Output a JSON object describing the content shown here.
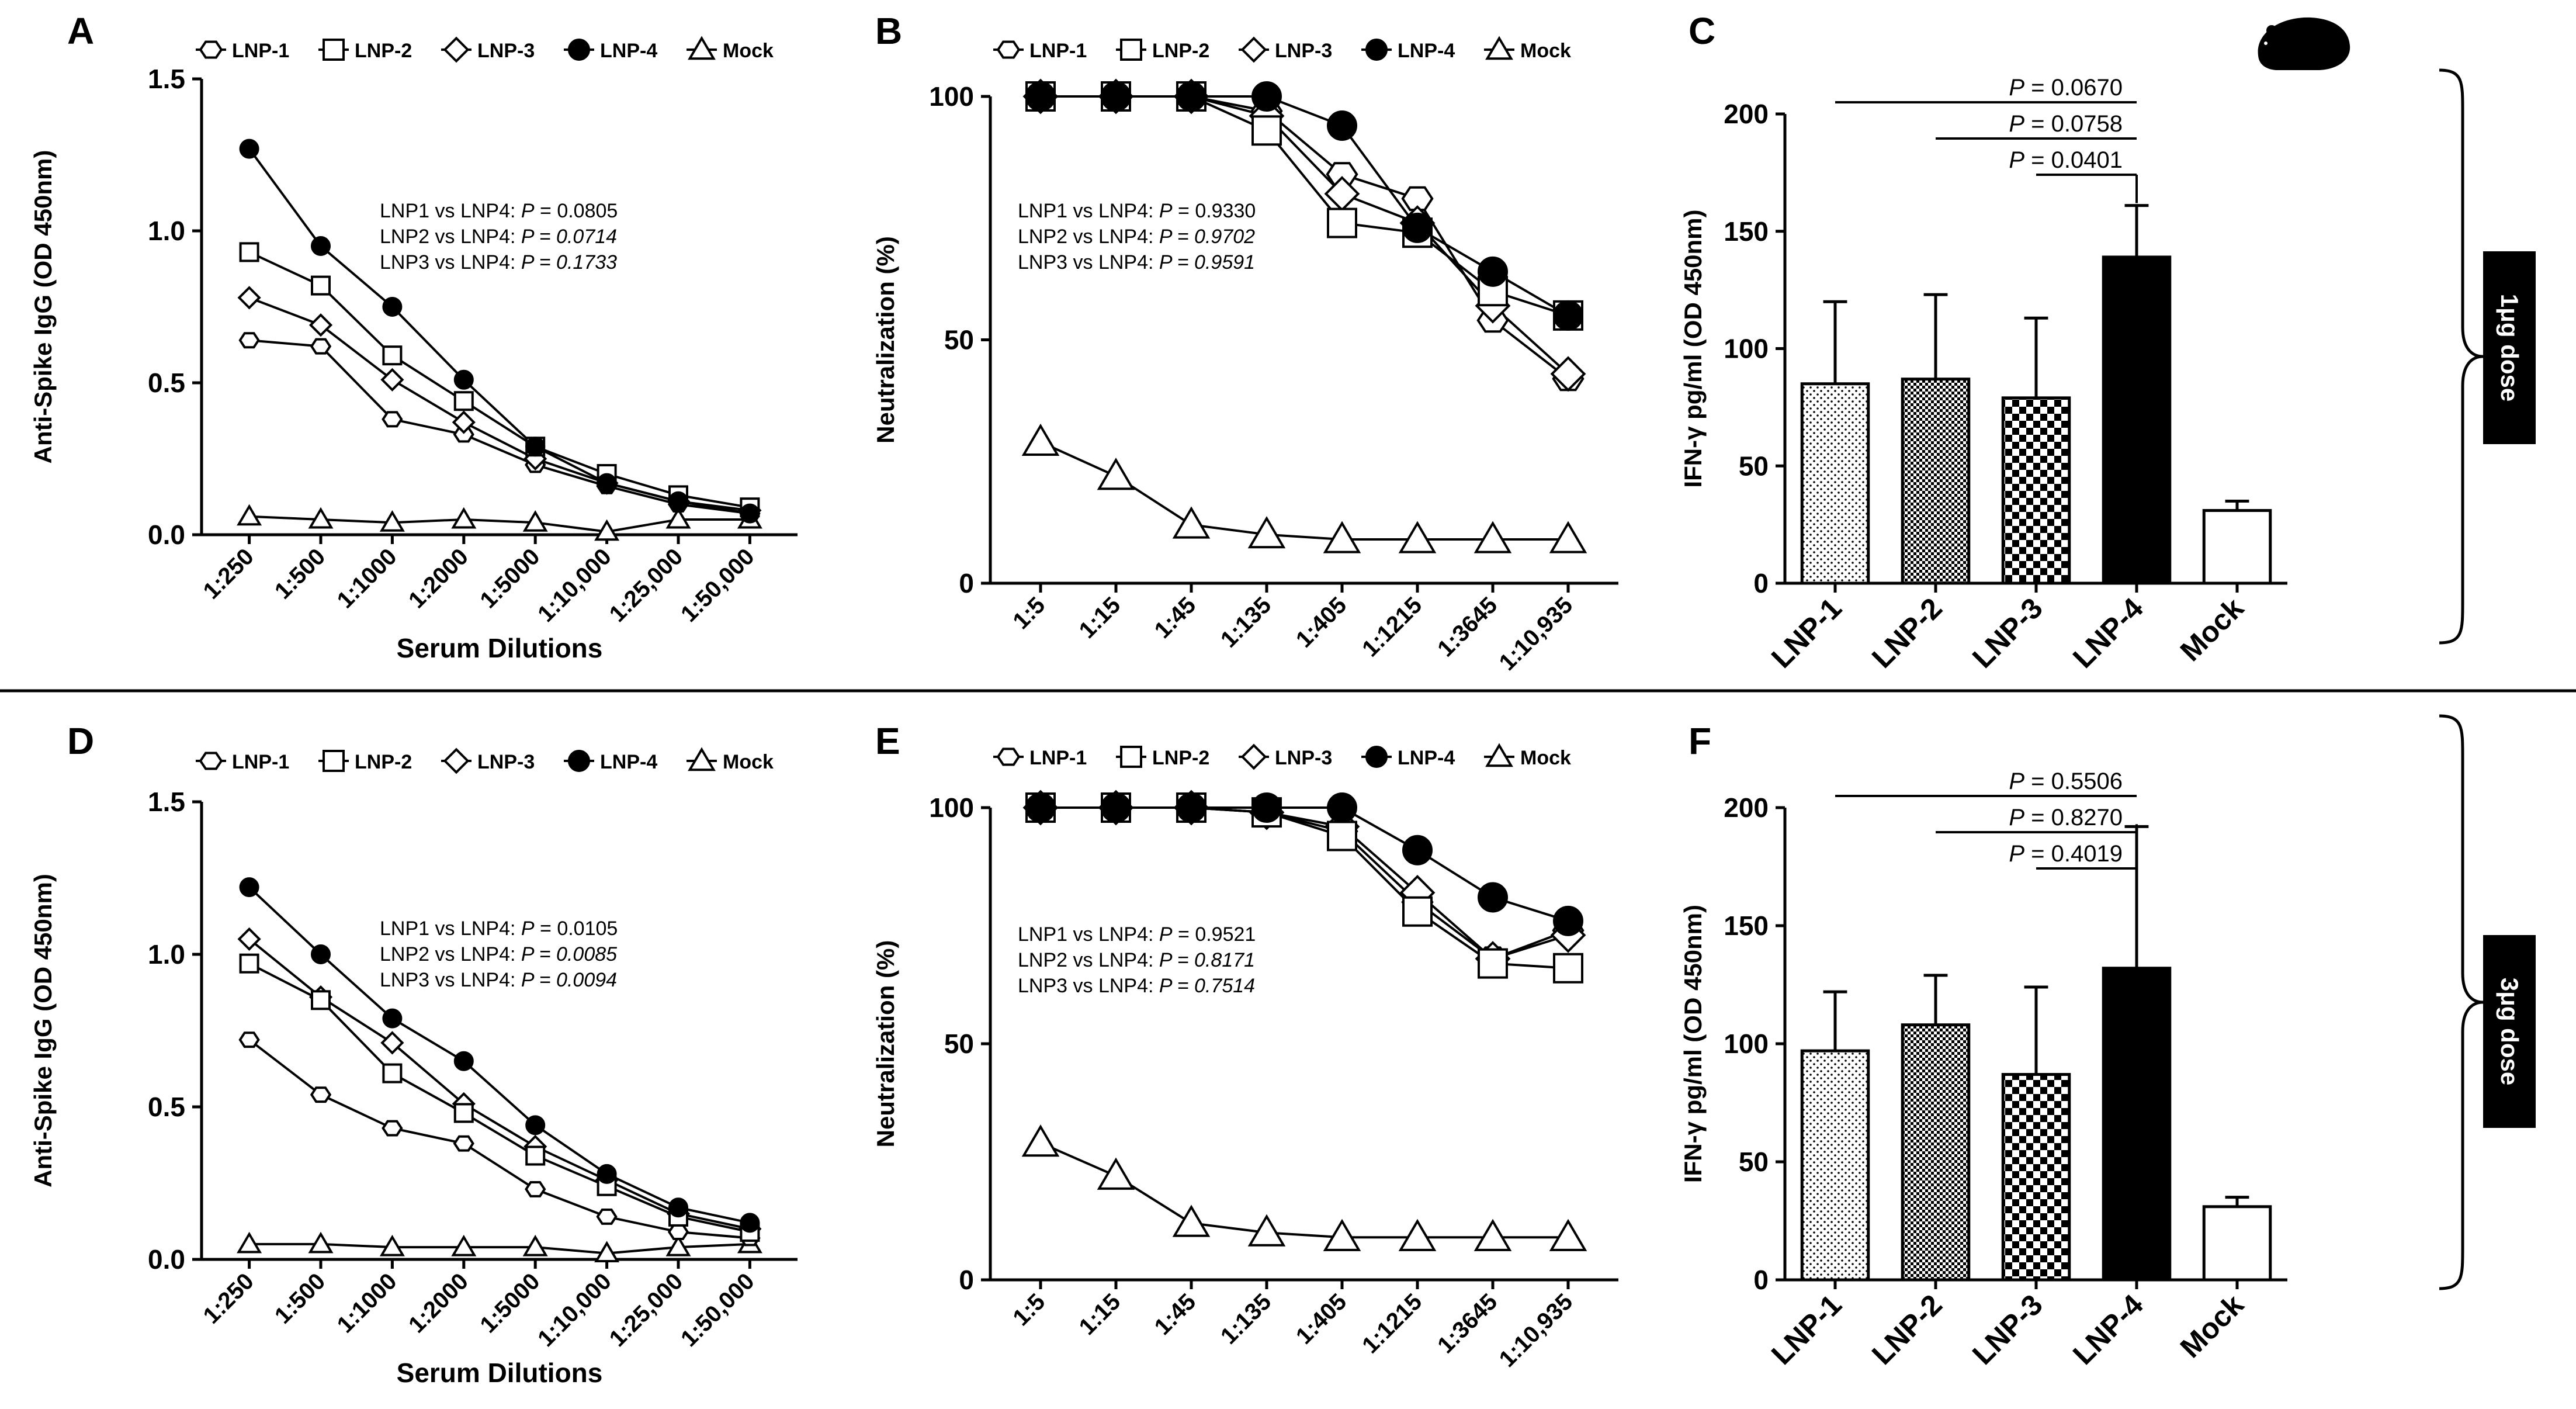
{
  "icons": {
    "animal": "hamster-icon"
  },
  "colors": {
    "ink": "#000000",
    "paper": "#ffffff",
    "dose_tab": "#000000"
  },
  "doses": [
    {
      "label": "1μg dose"
    },
    {
      "label": "3μg dose"
    }
  ],
  "chart_data": [
    {
      "panel": "A",
      "type": "line",
      "ylabel": "Anti-Spike IgG (OD 450nm)",
      "xlabel": "Serum Dilutions",
      "ylim": [
        0,
        1.5
      ],
      "yticks": [
        "0.0",
        "0.5",
        "1.0",
        "1.5"
      ],
      "categories": [
        "1:250",
        "1:500",
        "1:1000",
        "1:2000",
        "1:5000",
        "1:10,000",
        "1:25,000",
        "1:50,000"
      ],
      "legend": [
        "LNP-1",
        "LNP-2",
        "LNP-3",
        "LNP-4",
        "Mock"
      ],
      "series": [
        {
          "name": "LNP-1",
          "marker": "hexagon",
          "values": [
            0.64,
            0.62,
            0.38,
            0.33,
            0.23,
            0.16,
            0.1,
            0.07
          ]
        },
        {
          "name": "LNP-2",
          "marker": "square",
          "values": [
            0.93,
            0.82,
            0.59,
            0.44,
            0.29,
            0.2,
            0.13,
            0.09
          ]
        },
        {
          "name": "LNP-3",
          "marker": "diamond",
          "values": [
            0.78,
            0.69,
            0.51,
            0.37,
            0.25,
            0.17,
            0.11,
            0.08
          ]
        },
        {
          "name": "LNP-4",
          "marker": "circle",
          "values": [
            1.27,
            0.95,
            0.75,
            0.51,
            0.29,
            0.17,
            0.11,
            0.07
          ]
        },
        {
          "name": "Mock",
          "marker": "triangle",
          "values": [
            0.06,
            0.05,
            0.04,
            0.05,
            0.04,
            0.01,
            0.05,
            0.05
          ]
        }
      ],
      "annotations": [
        {
          "prefix": "LNP1 vs LNP4: ",
          "p": "P",
          "rest": " = 0.0805",
          "italic_value": false
        },
        {
          "prefix": "LNP2 vs LNP4: ",
          "p": "P",
          "rest": " = 0.0714",
          "italic_value": true
        },
        {
          "prefix": "LNP3 vs LNP4: ",
          "p": "P",
          "rest": " = 0.1733",
          "italic_value": true
        }
      ]
    },
    {
      "panel": "B",
      "type": "line",
      "ylabel": "Neutralization (%)",
      "xlabel": "",
      "ylim": [
        0,
        100
      ],
      "yticks": [
        "0",
        "50",
        "100"
      ],
      "categories": [
        "1:5",
        "1:15",
        "1:45",
        "1:135",
        "1:405",
        "1:1215",
        "1:3645",
        "1:10,935"
      ],
      "legend": [
        "LNP-1",
        "LNP-2",
        "LNP-3",
        "LNP-4",
        "Mock"
      ],
      "series": [
        {
          "name": "LNP-1",
          "marker": "hexagon",
          "values": [
            100,
            100,
            100,
            97,
            84,
            79,
            54,
            42
          ]
        },
        {
          "name": "LNP-2",
          "marker": "square",
          "values": [
            100,
            100,
            100,
            93,
            74,
            72,
            60,
            55
          ]
        },
        {
          "name": "LNP-3",
          "marker": "diamond",
          "values": [
            100,
            100,
            100,
            96,
            80,
            74,
            57,
            43
          ]
        },
        {
          "name": "LNP-4",
          "marker": "circle",
          "values": [
            100,
            100,
            100,
            100,
            94,
            73,
            64,
            55
          ]
        },
        {
          "name": "Mock",
          "marker": "triangle",
          "values": [
            29,
            22,
            12,
            10,
            9,
            9,
            9,
            9
          ]
        }
      ],
      "annotations": [
        {
          "prefix": "LNP1 vs LNP4: ",
          "p": "P",
          "rest": " = 0.9330",
          "italic_value": false
        },
        {
          "prefix": "LNP2 vs LNP4: ",
          "p": "P",
          "rest": " = 0.9702",
          "italic_value": true
        },
        {
          "prefix": "LNP3 vs LNP4: ",
          "p": "P",
          "rest": " = 0.9591",
          "italic_value": true
        }
      ]
    },
    {
      "panel": "C",
      "type": "bar",
      "ylabel": "IFN-γ pg/ml (OD 450nm)",
      "ylim": [
        0,
        200
      ],
      "yticks": [
        "0",
        "50",
        "100",
        "150",
        "200"
      ],
      "categories": [
        "LNP-1",
        "LNP-2",
        "LNP-3",
        "LNP-4",
        "Mock"
      ],
      "values": [
        85,
        87,
        79,
        139,
        31
      ],
      "errors": [
        35,
        36,
        34,
        22,
        4
      ],
      "fills": [
        "dots",
        "fine-check",
        "checker",
        "solid",
        "white"
      ],
      "comparisons": [
        {
          "from": 0,
          "to": 3,
          "p": "P",
          "rest": " = 0.0670"
        },
        {
          "from": 1,
          "to": 3,
          "p": "P",
          "rest": " = 0.0758"
        },
        {
          "from": 2,
          "to": 3,
          "p": "P",
          "rest": " = 0.0401"
        }
      ]
    },
    {
      "panel": "D",
      "type": "line",
      "ylabel": "Anti-Spike IgG (OD 450nm)",
      "xlabel": "Serum Dilutions",
      "ylim": [
        0,
        1.5
      ],
      "yticks": [
        "0.0",
        "0.5",
        "1.0",
        "1.5"
      ],
      "categories": [
        "1:250",
        "1:500",
        "1:1000",
        "1:2000",
        "1:5000",
        "1:10,000",
        "1:25,000",
        "1:50,000"
      ],
      "legend": [
        "LNP-1",
        "LNP-2",
        "LNP-3",
        "LNP-4",
        "Mock"
      ],
      "series": [
        {
          "name": "LNP-1",
          "marker": "hexagon",
          "values": [
            0.72,
            0.54,
            0.43,
            0.38,
            0.23,
            0.14,
            0.09,
            0.07
          ]
        },
        {
          "name": "LNP-2",
          "marker": "square",
          "values": [
            0.97,
            0.85,
            0.61,
            0.48,
            0.34,
            0.24,
            0.14,
            0.09
          ]
        },
        {
          "name": "LNP-3",
          "marker": "diamond",
          "values": [
            1.05,
            0.86,
            0.71,
            0.51,
            0.37,
            0.26,
            0.15,
            0.1
          ]
        },
        {
          "name": "LNP-4",
          "marker": "circle",
          "values": [
            1.22,
            1.0,
            0.79,
            0.65,
            0.44,
            0.28,
            0.17,
            0.12
          ]
        },
        {
          "name": "Mock",
          "marker": "triangle",
          "values": [
            0.05,
            0.05,
            0.04,
            0.04,
            0.04,
            0.02,
            0.04,
            0.05
          ]
        }
      ],
      "annotations": [
        {
          "prefix": "LNP1 vs LNP4: ",
          "p": "P",
          "rest": " = 0.0105",
          "italic_value": false
        },
        {
          "prefix": "LNP2 vs LNP4: ",
          "p": "P",
          "rest": " = 0.0085",
          "italic_value": true
        },
        {
          "prefix": "LNP3 vs LNP4: ",
          "p": "P",
          "rest": " = 0.0094",
          "italic_value": true
        }
      ]
    },
    {
      "panel": "E",
      "type": "line",
      "ylabel": "Neutralization (%)",
      "xlabel": "",
      "ylim": [
        0,
        100
      ],
      "yticks": [
        "0",
        "50",
        "100"
      ],
      "categories": [
        "1:5",
        "1:15",
        "1:45",
        "1:135",
        "1:405",
        "1:1215",
        "1:3645",
        "1:10,935"
      ],
      "legend": [
        "LNP-1",
        "LNP-2",
        "LNP-3",
        "LNP-4",
        "Mock"
      ],
      "series": [
        {
          "name": "LNP-1",
          "marker": "hexagon",
          "values": [
            100,
            100,
            100,
            99,
            95,
            80,
            68,
            74
          ]
        },
        {
          "name": "LNP-2",
          "marker": "square",
          "values": [
            100,
            100,
            100,
            99,
            94,
            78,
            67,
            66
          ]
        },
        {
          "name": "LNP-3",
          "marker": "diamond",
          "values": [
            100,
            100,
            100,
            99,
            96,
            82,
            68,
            73
          ]
        },
        {
          "name": "LNP-4",
          "marker": "circle",
          "values": [
            100,
            100,
            100,
            100,
            100,
            91,
            81,
            76
          ]
        },
        {
          "name": "Mock",
          "marker": "triangle",
          "values": [
            29,
            22,
            12,
            10,
            9,
            9,
            9,
            9
          ]
        }
      ],
      "annotations": [
        {
          "prefix": "LNP1 vs LNP4: ",
          "p": "P",
          "rest": " = 0.9521",
          "italic_value": false
        },
        {
          "prefix": "LNP2 vs LNP4: ",
          "p": "P",
          "rest": " = 0.8171",
          "italic_value": true
        },
        {
          "prefix": "LNP3 vs LNP4: ",
          "p": "P",
          "rest": " = 0.7514",
          "italic_value": true
        }
      ]
    },
    {
      "panel": "F",
      "type": "bar",
      "ylabel": "IFN-γ pg/ml (OD 450nm)",
      "ylim": [
        0,
        200
      ],
      "yticks": [
        "0",
        "50",
        "100",
        "150",
        "200"
      ],
      "categories": [
        "LNP-1",
        "LNP-2",
        "LNP-3",
        "LNP-4",
        "Mock"
      ],
      "values": [
        97,
        108,
        87,
        132,
        31
      ],
      "errors": [
        25,
        21,
        37,
        60,
        4
      ],
      "fills": [
        "dots",
        "fine-check",
        "checker",
        "solid",
        "white"
      ],
      "comparisons": [
        {
          "from": 0,
          "to": 3,
          "p": "P",
          "rest": " = 0.5506"
        },
        {
          "from": 1,
          "to": 3,
          "p": "P",
          "rest": " = 0.8270"
        },
        {
          "from": 2,
          "to": 3,
          "p": "P",
          "rest": " = 0.4019"
        }
      ]
    }
  ]
}
